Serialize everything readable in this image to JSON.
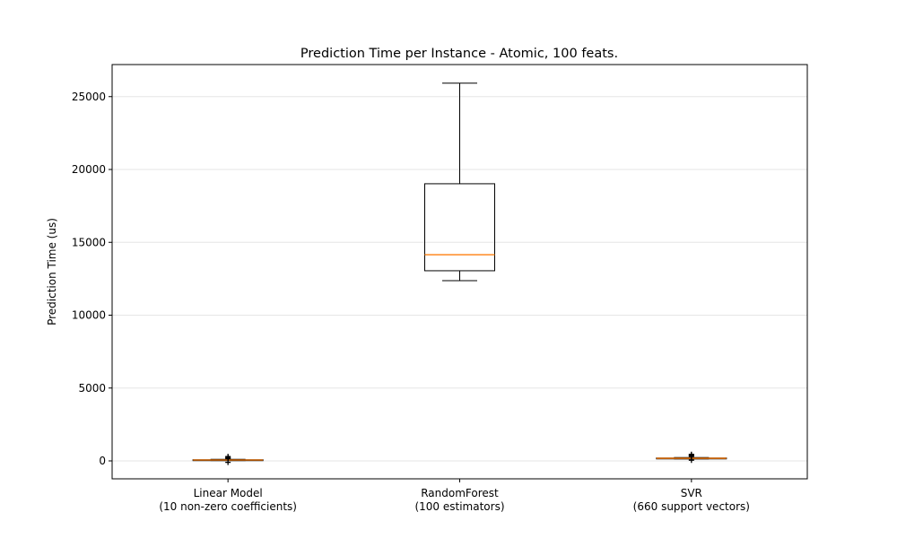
{
  "chart_data": {
    "type": "box",
    "title": "Prediction Time per Instance - Atomic, 100 feats.",
    "xlabel": "",
    "ylabel": "Prediction Time (us)",
    "ylim": [
      -1230,
      27200
    ],
    "yticks": [
      0,
      5000,
      10000,
      15000,
      20000,
      25000
    ],
    "grid": "y",
    "categories": [
      [
        "Linear Model",
        "(10 non-zero coefficients)"
      ],
      [
        "RandomForest",
        "(100 estimators)"
      ],
      [
        "SVR",
        "(660 support vectors)"
      ]
    ],
    "boxes": [
      {
        "whisker_low": 20,
        "q1": 40,
        "median": 60,
        "q3": 80,
        "whisker_high": 110,
        "fliers": [
          -100,
          150,
          200,
          250,
          300
        ]
      },
      {
        "whisker_low": 12370,
        "q1": 13050,
        "median": 14150,
        "q3": 19020,
        "whisker_high": 25920,
        "fliers": []
      },
      {
        "whisker_low": 140,
        "q1": 160,
        "median": 180,
        "q3": 200,
        "whisker_high": 230,
        "fliers": [
          50,
          300,
          350,
          400,
          450
        ]
      }
    ],
    "colors": {
      "box": "#000000",
      "median": "#ff7f0e",
      "grid": "#e6e6e6"
    }
  }
}
